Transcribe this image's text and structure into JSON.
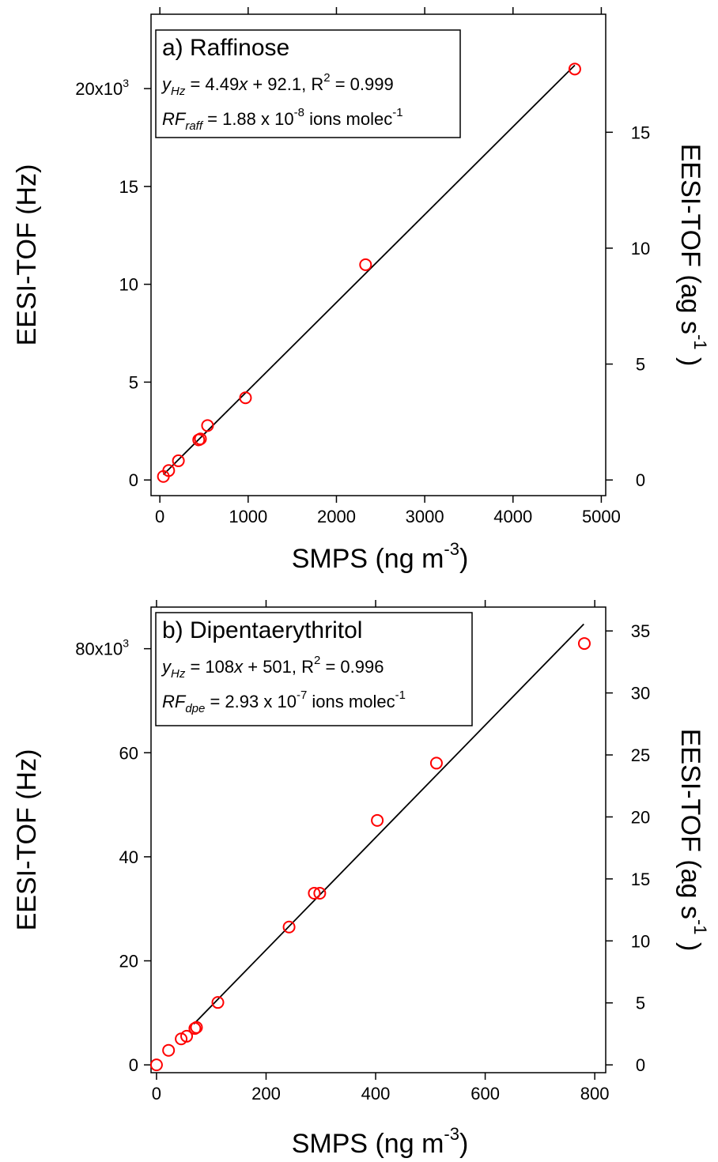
{
  "chart_data": [
    {
      "type": "scatter",
      "panel": "a) Raffinose",
      "xlabel": "SMPS (ng m",
      "xlabel_sup": "-3",
      "xlabel_end": ")",
      "ylabel_left": "EESI-TOF (Hz)",
      "ylabel_right": "EESI-TOF (ag s",
      "ylabel_right_sup": "-1",
      "ylabel_right_end": " )",
      "xlim": [
        -100,
        5050
      ],
      "ylim_left": [
        -800,
        23800
      ],
      "y_right_factor": 0.8442,
      "x_ticks": [
        0,
        1000,
        2000,
        3000,
        4000,
        5000
      ],
      "x_tick_labels": [
        "0",
        "1000",
        "2000",
        "3000",
        "4000",
        "5000"
      ],
      "y_left_ticks": [
        0,
        5000,
        10000,
        15000,
        20000
      ],
      "y_left_tick_labels": [
        "0",
        "5",
        "10",
        "15",
        "20x10"
      ],
      "y_left_top_sup": "3",
      "y_right_ticks": [
        0,
        5,
        10,
        15
      ],
      "y_right_tick_labels": [
        "0",
        "5",
        "10",
        "15"
      ],
      "fit": {
        "slope": 4.49,
        "intercept": 92.1,
        "x_range": [
          40,
          4700
        ]
      },
      "annotation": {
        "title": "a) Raffinose",
        "line1": {
          "y": "y",
          "y_sub": "Hz",
          "eq": " = 4.49",
          "x": "x",
          "eq2": " + 92.1, R",
          "sup": "2",
          "eq3": " = 0.999"
        },
        "line2": {
          "rf": "RF",
          "rf_sub": "raff",
          "eq": " = 1.88 x 10",
          "sup": "-8",
          "eq2": " ions molec",
          "sup2": "-1"
        }
      },
      "points": [
        {
          "x": 40,
          "y": 180
        },
        {
          "x": 100,
          "y": 480
        },
        {
          "x": 210,
          "y": 980
        },
        {
          "x": 440,
          "y": 2050
        },
        {
          "x": 460,
          "y": 2100
        },
        {
          "x": 540,
          "y": 2780
        },
        {
          "x": 970,
          "y": 4200
        },
        {
          "x": 2330,
          "y": 11000
        },
        {
          "x": 4700,
          "y": 21000
        }
      ],
      "colors": {
        "marker": "#ff0000",
        "fit": "#000000"
      }
    },
    {
      "type": "scatter",
      "panel": "b) Dipentaerythritol",
      "xlabel": "SMPS (ng m",
      "xlabel_sup": "-3",
      "xlabel_end": ")",
      "ylabel_left": "EESI-TOF (Hz)",
      "ylabel_right": "EESI-TOF (ag s",
      "ylabel_right_sup": "-1",
      "ylabel_right_end": " )",
      "xlim": [
        -10,
        820
      ],
      "ylim_left": [
        -1500,
        88000
      ],
      "y_right_factor": 0.4196,
      "x_ticks": [
        0,
        200,
        400,
        600,
        800
      ],
      "x_tick_labels": [
        "0",
        "200",
        "400",
        "600",
        "800"
      ],
      "y_left_ticks": [
        0,
        20000,
        40000,
        60000,
        80000
      ],
      "y_left_tick_labels": [
        "0",
        "20",
        "40",
        "60",
        "80x10"
      ],
      "y_left_top_sup": "3",
      "y_right_ticks": [
        0,
        5,
        10,
        15,
        20,
        25,
        30,
        35
      ],
      "y_right_tick_labels": [
        "0",
        "5",
        "10",
        "15",
        "20",
        "25",
        "30",
        "35"
      ],
      "fit": {
        "slope": 108,
        "intercept": 501,
        "x_range": [
          68,
          780
        ]
      },
      "annotation": {
        "title": "b) Dipentaerythritol",
        "line1": {
          "y": "y",
          "y_sub": "Hz",
          "eq": " = 108",
          "x": "x",
          "eq2": " + 501, R",
          "sup": "2",
          "eq3": " = 0.996"
        },
        "line2": {
          "rf": "RF",
          "rf_sub": "dpe",
          "eq": " = 2.93 x 10",
          "sup": "-7",
          "eq2": " ions molec",
          "sup2": "-1"
        }
      },
      "points": [
        {
          "x": 0,
          "y": 0
        },
        {
          "x": 22,
          "y": 2800
        },
        {
          "x": 45,
          "y": 5000
        },
        {
          "x": 55,
          "y": 5500
        },
        {
          "x": 70,
          "y": 7000
        },
        {
          "x": 73,
          "y": 7200
        },
        {
          "x": 112,
          "y": 12000
        },
        {
          "x": 242,
          "y": 26500
        },
        {
          "x": 288,
          "y": 33000
        },
        {
          "x": 298,
          "y": 33000
        },
        {
          "x": 403,
          "y": 47000
        },
        {
          "x": 511,
          "y": 58000
        },
        {
          "x": 781,
          "y": 81000
        }
      ],
      "colors": {
        "marker": "#ff0000",
        "fit": "#000000"
      }
    }
  ]
}
